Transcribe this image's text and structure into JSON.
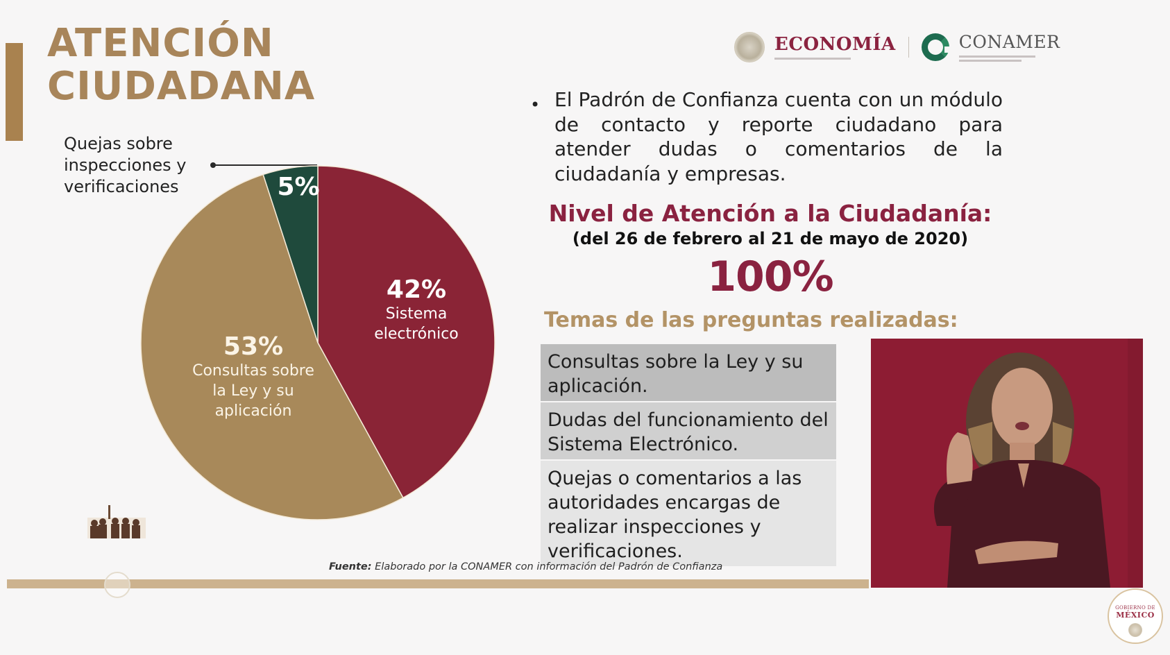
{
  "slide": {
    "title_lines": [
      "ATENCIÓN",
      "CIUDADANA"
    ],
    "colors": {
      "background": "#f7f6f6",
      "gold": "#a8855a",
      "accent_bar": "#a9824f",
      "wine": "#8a2240",
      "green": "#1f4a3c",
      "pie_red": "#8a2436",
      "pie_gold": "#a8895a",
      "video_bg": "#8d1c33"
    }
  },
  "logos": {
    "economia": "ECONOMÍA",
    "conamer": "CONAMER",
    "gobierno_line1": "GOBIERNO DE",
    "gobierno_line2": "MÉXICO"
  },
  "callout": {
    "lines": [
      "Quejas sobre",
      "inspecciones y",
      "verificaciones"
    ]
  },
  "bullet": {
    "text": "El Padrón de Confianza cuenta con un módulo de contacto y reporte ciudadano para atender dudas o comentarios de la ciudadanía y empresas."
  },
  "nivel": {
    "title": "Nivel de Atención a la Ciudadanía:",
    "dates": "(del 26 de febrero al 21 de mayo de 2020)",
    "value": "100%"
  },
  "temas": {
    "title": "Temas de las preguntas realizadas:",
    "rows": [
      "Consultas sobre la Ley y su aplicación.",
      "Dudas del funcionamiento del Sistema Electrónico.",
      "Quejas o comentarios a las autoridades encargas de realizar inspecciones y verificaciones."
    ]
  },
  "source": {
    "label": "Fuente:",
    "text": " Elaborado por la CONAMER con información del Padrón de Confianza"
  },
  "chart_data": {
    "type": "pie",
    "title": "",
    "categories": [
      "Sistema electrónico",
      "Quejas sobre inspecciones y verificaciones",
      "Consultas sobre la Ley y su aplicación"
    ],
    "values": [
      42,
      5,
      53
    ],
    "labels": [
      "42%",
      "5%",
      "53%"
    ],
    "colors": [
      "#8a2436",
      "#1f4a3c",
      "#a8895a"
    ],
    "start_angle_deg": 0,
    "direction": "clockwise from 12 o'clock for Sistema electrónico; 5% slice counter-clockwise from 12 o'clock",
    "annotations": [
      {
        "label": "42%",
        "text": "Sistema electrónico"
      },
      {
        "label": "53%",
        "text": "Consultas sobre la Ley y su aplicación"
      },
      {
        "label": "5%",
        "text": "Quejas sobre inspecciones y verificaciones",
        "leader_line": true
      }
    ],
    "pie_label_lines": {
      "s42": [
        "Sistema",
        "electrónico"
      ],
      "s53": [
        "Consultas sobre",
        "la Ley y su",
        "aplicación"
      ]
    }
  }
}
